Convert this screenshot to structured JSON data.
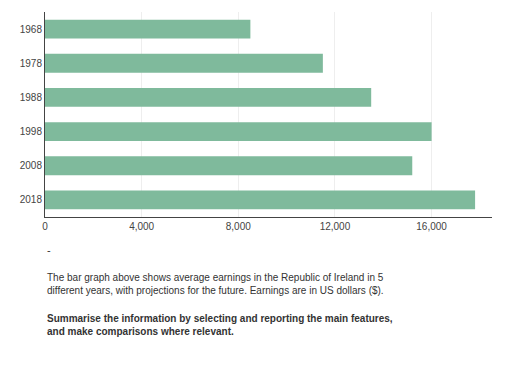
{
  "chart_data": {
    "type": "bar",
    "orientation": "horizontal",
    "categories": [
      "1968",
      "1978",
      "1988",
      "1998",
      "2008",
      "2018"
    ],
    "values": [
      8500,
      11500,
      13500,
      16000,
      15200,
      17800
    ],
    "color": "#7fba9c",
    "xlim": [
      0,
      18500
    ],
    "xticks": [
      0,
      {
        "value": 4000,
        "label": "4,000"
      },
      {
        "value": 8000,
        "label": "8,000"
      },
      {
        "value": 12000,
        "label": "12,000"
      },
      {
        "value": 16000,
        "label": "16,000"
      }
    ],
    "grid": true,
    "annotations": [
      "-",
      "The bar graph above shows average earnings in the Republic of Ireland in 5\ndifferent years, with projections for the future. Earnings are in US dollars ($).",
      "Summarise the information by selecting and reporting the main features,\nand make comparisons where relevant."
    ]
  }
}
